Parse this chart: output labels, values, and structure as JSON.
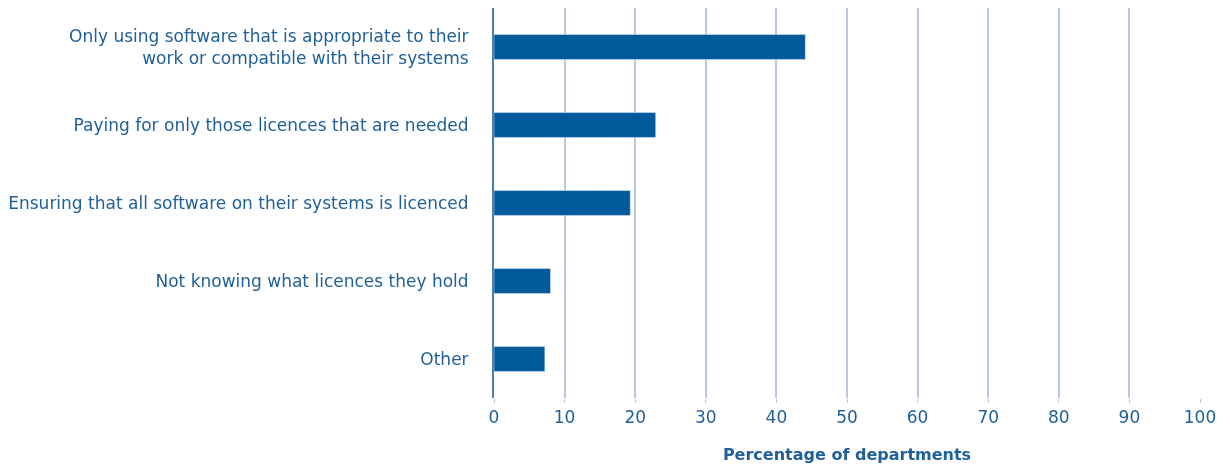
{
  "chart_data": {
    "type": "bar",
    "orientation": "horizontal",
    "xlabel": "Percentage of departments",
    "categories": [
      "Only using software that is appropriate to their\nwork or compatible with their systems",
      "Paying for only those licences that are needed",
      "Ensuring that all software on their systems is licenced",
      "Not knowing what licences they hold",
      "Other"
    ],
    "values": [
      44.1,
      22.9,
      19.3,
      8.0,
      7.2
    ],
    "color": "#005a9c",
    "xlim": [
      0,
      100
    ],
    "xticks": [
      0,
      10,
      20,
      30,
      40,
      50,
      60,
      70,
      80,
      90,
      100
    ],
    "grid": "x"
  }
}
